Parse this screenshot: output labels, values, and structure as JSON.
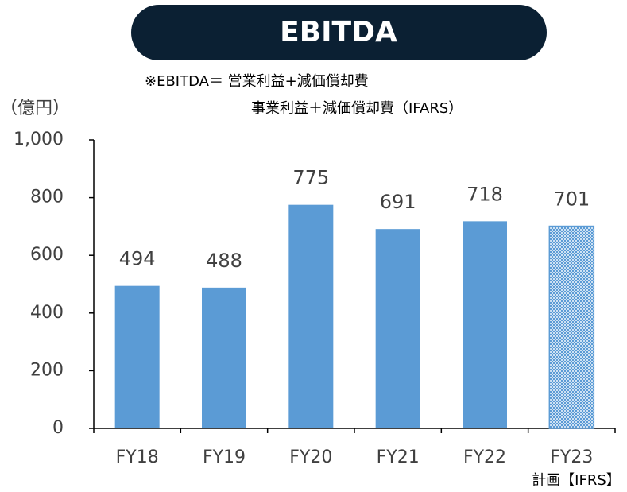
{
  "chart_data": {
    "type": "bar",
    "title": "EBITDA",
    "notes": [
      "※EBITDA＝ 営業利益+減価償却費",
      "事業利益＋減価償却費（IFARS）"
    ],
    "y_label": "（億円）",
    "categories": [
      "FY18",
      "FY19",
      "FY20",
      "FY21",
      "FY22",
      "FY23"
    ],
    "category_note": "計画【IFRS】",
    "values": [
      494,
      488,
      775,
      691,
      718,
      701
    ],
    "hatched": [
      false,
      false,
      false,
      false,
      false,
      true
    ],
    "color": "#5b9bd5",
    "ylim": [
      0,
      1000
    ],
    "yticks": [
      0,
      200,
      400,
      600,
      800,
      {
        "value": 1000,
        "label": "1,000"
      }
    ],
    "grid": false
  }
}
